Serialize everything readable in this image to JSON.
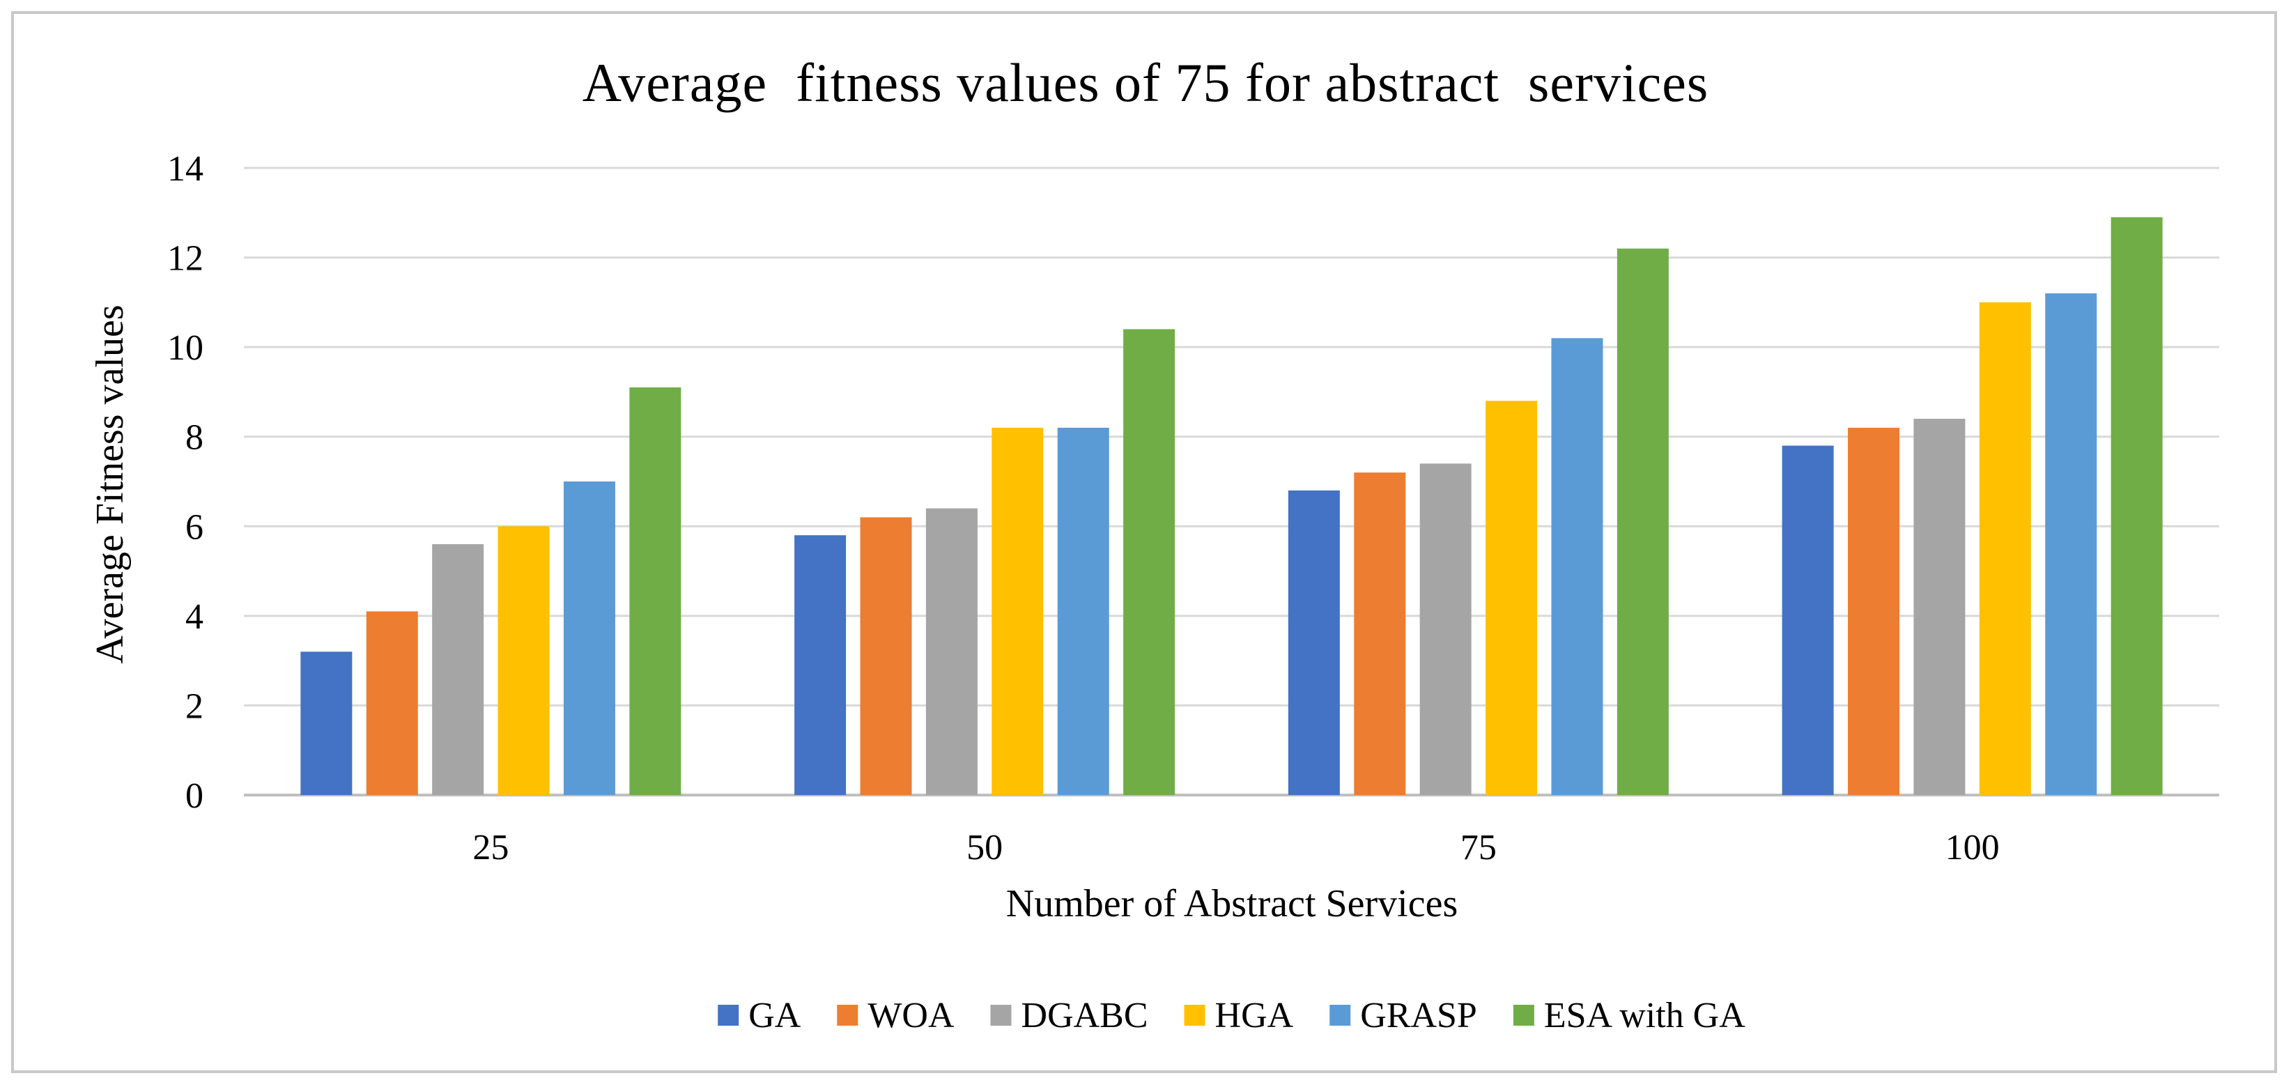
{
  "chart_data": {
    "type": "bar",
    "title": "Average  fitness values of 75 for abstract  services",
    "xlabel": "Number of Abstract Services",
    "ylabel": "Average Fitness values",
    "categories": [
      "25",
      "50",
      "75",
      "100"
    ],
    "ylim": [
      0,
      14
    ],
    "yticks": [
      0,
      2,
      4,
      6,
      8,
      10,
      12,
      14
    ],
    "grid": true,
    "legend_position": "bottom",
    "series": [
      {
        "name": "GA",
        "color": "#4472c4",
        "values": [
          3.2,
          5.8,
          6.8,
          7.8
        ]
      },
      {
        "name": "WOA",
        "color": "#ed7d31",
        "values": [
          4.1,
          6.2,
          7.2,
          8.2
        ]
      },
      {
        "name": "DGABC",
        "color": "#a5a5a5",
        "values": [
          5.6,
          6.4,
          7.4,
          8.4
        ]
      },
      {
        "name": "HGA",
        "color": "#ffc000",
        "values": [
          6.0,
          8.2,
          8.8,
          11.0
        ]
      },
      {
        "name": "GRASP",
        "color": "#5b9bd5",
        "values": [
          7.0,
          8.2,
          10.2,
          11.2
        ]
      },
      {
        "name": "ESA with GA",
        "color": "#70ad47",
        "values": [
          9.1,
          10.4,
          12.2,
          12.9
        ]
      }
    ]
  }
}
